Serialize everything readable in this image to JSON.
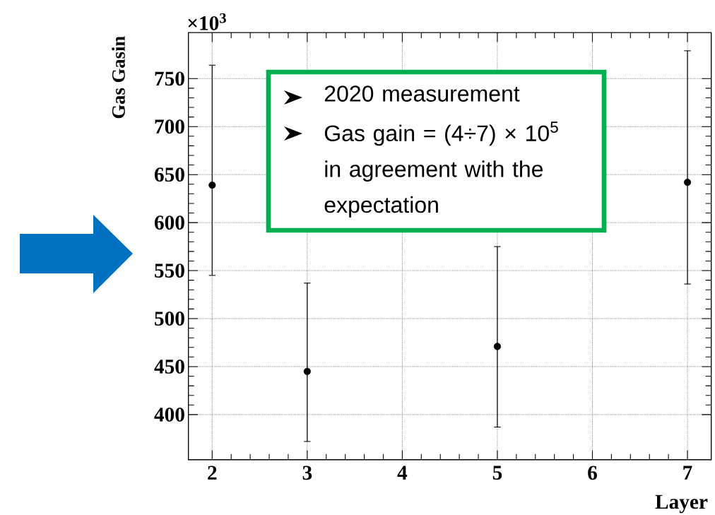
{
  "chart_data": {
    "type": "scatter",
    "xlabel": "Layer",
    "ylabel": "Gas Gasin",
    "x": [
      2,
      3,
      5,
      7
    ],
    "series": [
      {
        "color": "#000000",
        "values": [
          639,
          445,
          471,
          642
        ],
        "errors": [
          [
            545,
            764
          ],
          [
            372,
            537
          ],
          [
            387,
            575
          ],
          [
            536,
            779
          ]
        ]
      }
    ],
    "marker": "circle",
    "xlim": [
      1.75,
      7.25
    ],
    "ylim": [
      353,
      798
    ],
    "xticks": [
      2,
      3,
      4,
      5,
      6,
      7
    ],
    "yticks": [
      400,
      450,
      500,
      550,
      600,
      650,
      700,
      750
    ],
    "grid": true,
    "annotations": [
      "×10$^{3}$",
      "2020 measurement",
      "Gas gain = (4÷7) × 10$^{5}$ in agreement with the expectation"
    ]
  }
}
